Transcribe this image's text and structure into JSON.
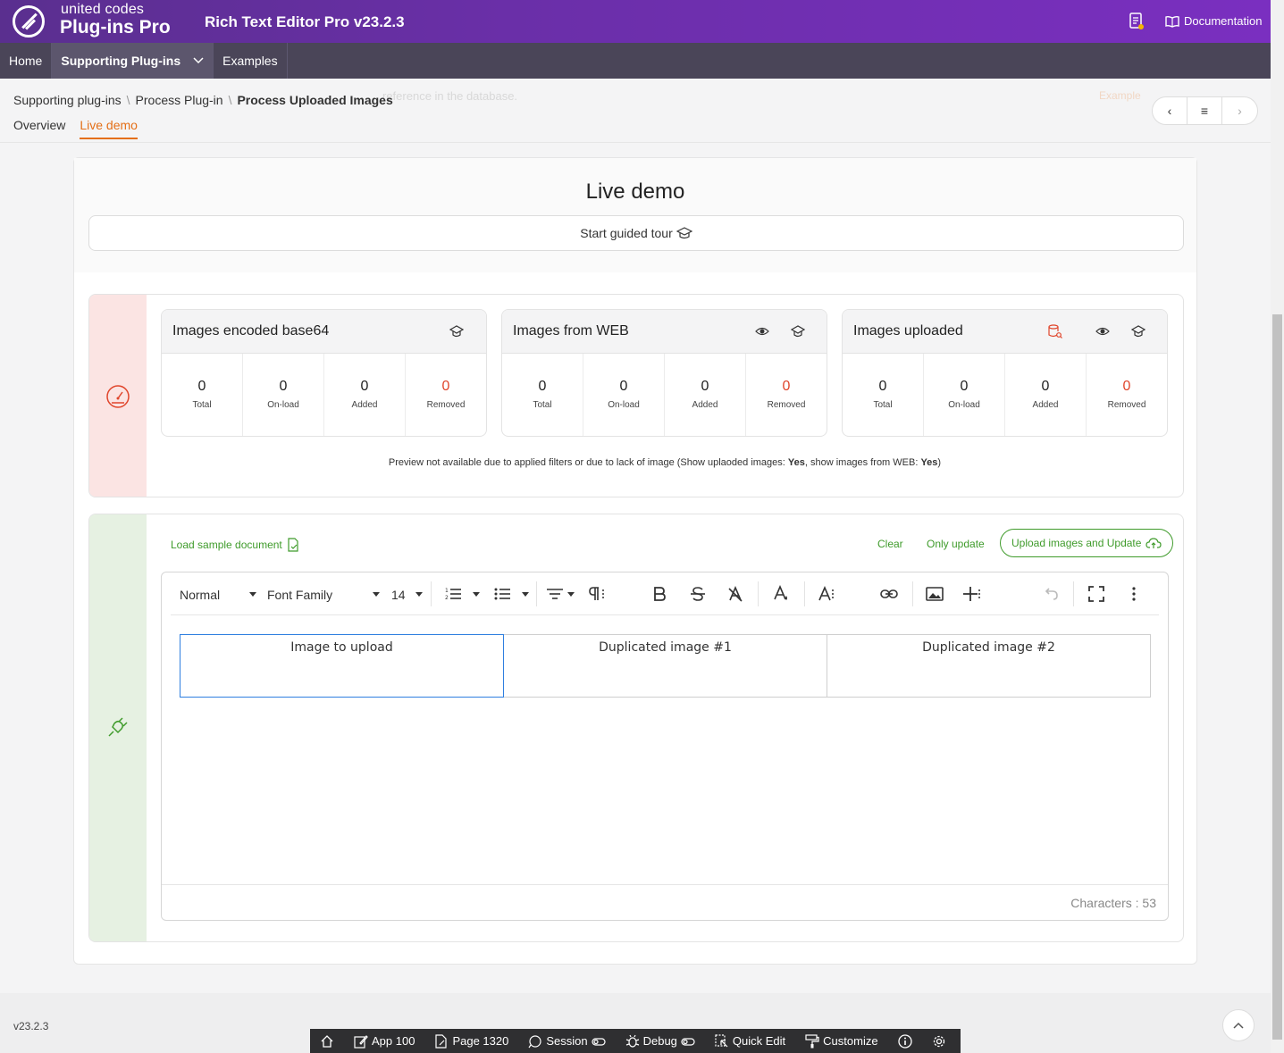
{
  "header": {
    "brand_top": "united codes",
    "brand_bottom": "Plug-ins Pro",
    "app_title": "Rich Text Editor Pro v23.2.3",
    "documentation": "Documentation",
    "icons": [
      "logo-icon",
      "notes-icon",
      "book-icon"
    ]
  },
  "nav": {
    "items": [
      {
        "label": "Home"
      },
      {
        "label": "Supporting Plug-ins"
      },
      {
        "label": "Examples"
      }
    ]
  },
  "breadcrumb": {
    "items": [
      "Supporting plug-ins",
      "Process Plug-in",
      "Process Uploaded Images"
    ],
    "sep": "\\",
    "ghost_text": "reference in the database.",
    "ghost_right": "Example"
  },
  "tabs": [
    {
      "label": "Overview"
    },
    {
      "label": "Live demo"
    }
  ],
  "pager": {
    "prev": "‹",
    "list": "≡",
    "next": "›"
  },
  "demo": {
    "title": "Live demo",
    "tour_button": "Start guided tour"
  },
  "stats": {
    "cards": [
      {
        "title": "Images encoded base64",
        "values": [
          "0",
          "0",
          "0",
          "0"
        ]
      },
      {
        "title": "Images from WEB",
        "values": [
          "0",
          "0",
          "0",
          "0"
        ]
      },
      {
        "title": "Images uploaded",
        "values": [
          "0",
          "0",
          "0",
          "0"
        ]
      }
    ],
    "labels": [
      "Total",
      "On-load",
      "Added",
      "Removed"
    ],
    "note_pre": "Preview not available due to applied filters or due to lack of image (Show uplaoded images: ",
    "note_yes1": "Yes",
    "note_mid": ", show images from WEB: ",
    "note_yes2": "Yes",
    "note_post": ")"
  },
  "editor_actions": {
    "load_sample": "Load sample document",
    "clear": "Clear",
    "only_update": "Only update",
    "upload_update": "Upload images and Update"
  },
  "toolbar": {
    "style": "Normal",
    "font_family": "Font Family",
    "font_size": "14",
    "icons": [
      "ordered-list-icon",
      "bullet-list-icon",
      "align-icon",
      "paragraph-format-icon",
      "bold-icon",
      "strikethrough-icon",
      "clear-format-icon",
      "text-color-icon",
      "font-size-icon",
      "link-icon",
      "image-icon",
      "insert-more-icon",
      "undo-icon",
      "fullscreen-icon",
      "more-icon"
    ]
  },
  "content": {
    "cells": [
      "Image to upload",
      "Duplicated image #1",
      "Duplicated image #2"
    ]
  },
  "char_count": "Characters : 53",
  "footer": {
    "version": "v23.2.3",
    "devbar": [
      {
        "label": ""
      },
      {
        "label": "App 100"
      },
      {
        "label": "Page 1320"
      },
      {
        "label": "Session"
      },
      {
        "label": "Debug"
      },
      {
        "label": "Quick Edit"
      },
      {
        "label": "Customize"
      },
      {
        "label": ""
      },
      {
        "label": ""
      }
    ]
  },
  "colors": {
    "accent": "#e46f17",
    "green": "#3f9b2b",
    "red": "#e0452b",
    "header_start": "#5a2f8f",
    "header_end": "#7a2fc0"
  }
}
